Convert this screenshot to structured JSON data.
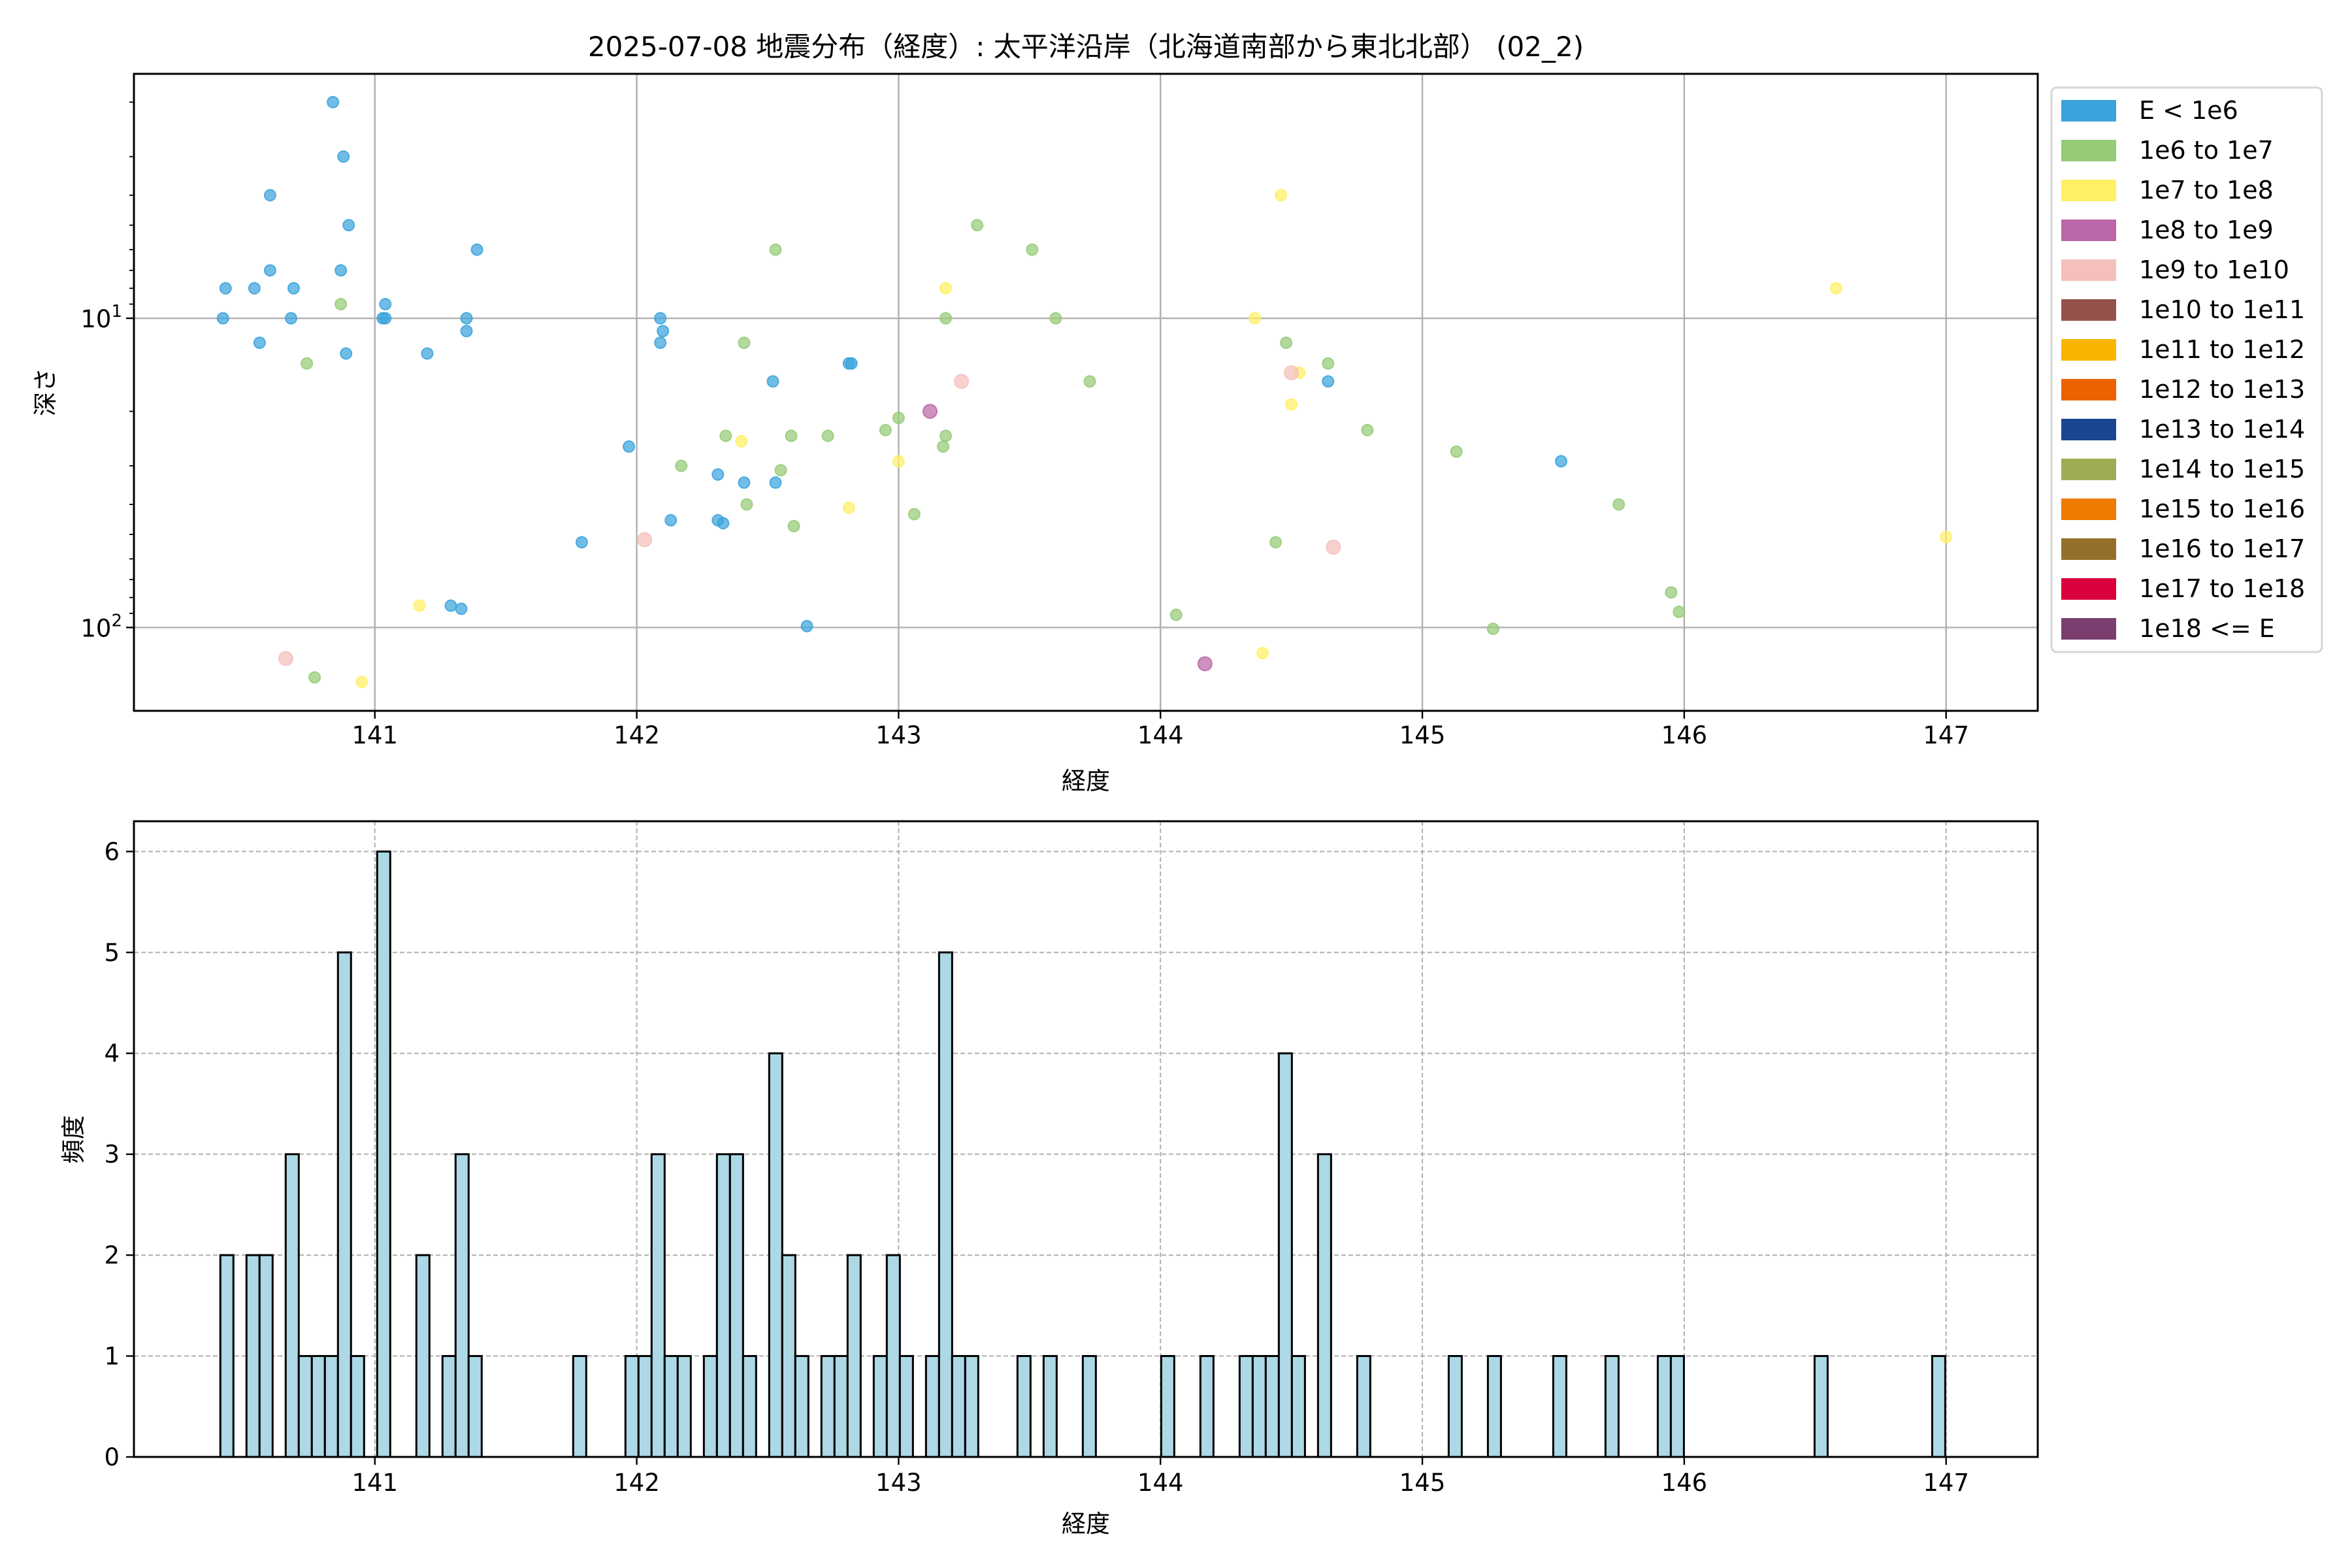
{
  "title": "2025-07-08 地震分布（経度）: 太平洋沿岸（北海道南部から東北北部） (02_2)",
  "chart_data": [
    {
      "type": "scatter",
      "xlabel": "経度",
      "ylabel": "深さ",
      "xlim": [
        140.08,
        147.35
      ],
      "ylim": [
        186,
        1.62
      ],
      "yscale": "log",
      "y_inverted": true,
      "grid": true,
      "xticks": [
        "141",
        "142",
        "143",
        "144",
        "145",
        "146",
        "147"
      ],
      "yticks": [
        {
          "value": 10,
          "base": "10",
          "exp": "1"
        },
        {
          "value": 100,
          "base": "10",
          "exp": "2"
        }
      ],
      "legend_position": "outside-right",
      "legend": [
        {
          "label": "E < 1e6",
          "color": "#3ba3dc"
        },
        {
          "label": "1e6 to 1e7",
          "color": "#95cb77"
        },
        {
          "label": "1e7 to 1e8",
          "color": "#fff064"
        },
        {
          "label": "1e8 to 1e9",
          "color": "#bb66a8"
        },
        {
          "label": "1e9 to 1e10",
          "color": "#f5bfbb"
        },
        {
          "label": "1e10 to 1e11",
          "color": "#95524d"
        },
        {
          "label": "1e11 to 1e12",
          "color": "#f7b500"
        },
        {
          "label": "1e12 to 1e13",
          "color": "#ec6200"
        },
        {
          "label": "1e13 to 1e14",
          "color": "#19468f"
        },
        {
          "label": "1e14 to 1e15",
          "color": "#9cad52"
        },
        {
          "label": "1e15 to 1e16",
          "color": "#ef7a00"
        },
        {
          "label": "1e16 to 1e17",
          "color": "#94702a"
        },
        {
          "label": "1e17 to 1e18",
          "color": "#d9003c"
        },
        {
          "label": "1e18 <= E",
          "color": "#7a3f6f"
        }
      ],
      "series": [
        {
          "legend_index": 0,
          "points": [
            [
              140.42,
              10
            ],
            [
              140.43,
              8
            ],
            [
              140.54,
              8
            ],
            [
              140.6,
              7
            ],
            [
              140.6,
              4
            ],
            [
              140.69,
              8
            ],
            [
              140.68,
              10
            ],
            [
              140.56,
              12
            ],
            [
              140.84,
              2
            ],
            [
              140.88,
              3
            ],
            [
              140.9,
              5
            ],
            [
              140.87,
              7
            ],
            [
              140.89,
              13
            ],
            [
              141.04,
              9
            ],
            [
              141.04,
              10
            ],
            [
              141.03,
              10
            ],
            [
              141.2,
              13
            ],
            [
              141.39,
              6
            ],
            [
              141.35,
              10
            ],
            [
              141.35,
              11
            ],
            [
              141.29,
              85
            ],
            [
              141.33,
              87
            ],
            [
              141.79,
              53
            ],
            [
              141.97,
              26
            ],
            [
              142.09,
              10
            ],
            [
              142.1,
              11
            ],
            [
              142.09,
              12
            ],
            [
              142.13,
              45
            ],
            [
              142.31,
              32
            ],
            [
              142.31,
              45
            ],
            [
              142.33,
              46
            ],
            [
              142.41,
              34
            ],
            [
              142.53,
              34
            ],
            [
              142.52,
              16
            ],
            [
              142.65,
              99
            ],
            [
              142.81,
              14
            ],
            [
              142.82,
              14
            ],
            [
              145.53,
              29
            ],
            [
              144.64,
              16
            ]
          ]
        },
        {
          "legend_index": 1,
          "points": [
            [
              140.87,
              9
            ],
            [
              140.74,
              14
            ],
            [
              140.77,
              145
            ],
            [
              142.53,
              6
            ],
            [
              142.41,
              12
            ],
            [
              142.34,
              24
            ],
            [
              142.17,
              30
            ],
            [
              142.59,
              24
            ],
            [
              142.73,
              24
            ],
            [
              142.55,
              31
            ],
            [
              142.42,
              40
            ],
            [
              142.6,
              47
            ],
            [
              142.95,
              23
            ],
            [
              143.0,
              21
            ],
            [
              143.18,
              24
            ],
            [
              143.17,
              26
            ],
            [
              143.06,
              43
            ],
            [
              143.18,
              10
            ],
            [
              143.3,
              5
            ],
            [
              143.51,
              6
            ],
            [
              143.6,
              10
            ],
            [
              143.73,
              16
            ],
            [
              144.48,
              12
            ],
            [
              144.64,
              14
            ],
            [
              144.79,
              23
            ],
            [
              145.13,
              27
            ],
            [
              145.75,
              40
            ],
            [
              145.95,
              77
            ],
            [
              145.98,
              89
            ],
            [
              145.27,
              101
            ],
            [
              144.06,
              91
            ],
            [
              144.44,
              53
            ]
          ]
        },
        {
          "legend_index": 2,
          "points": [
            [
              140.95,
              150
            ],
            [
              141.17,
              85
            ],
            [
              142.4,
              25
            ],
            [
              142.81,
              41
            ],
            [
              143.0,
              29
            ],
            [
              143.18,
              8
            ],
            [
              144.36,
              10
            ],
            [
              144.46,
              4
            ],
            [
              144.5,
              19
            ],
            [
              144.53,
              15
            ],
            [
              144.39,
              121
            ],
            [
              146.58,
              8
            ],
            [
              147.0,
              51
            ]
          ]
        },
        {
          "legend_index": 3,
          "points": [
            [
              143.12,
              20
            ],
            [
              144.17,
              131
            ]
          ]
        },
        {
          "legend_index": 4,
          "points": [
            [
              140.66,
              126
            ],
            [
              142.03,
              52
            ],
            [
              143.24,
              16
            ],
            [
              144.5,
              15
            ],
            [
              144.66,
              55
            ]
          ]
        }
      ]
    },
    {
      "type": "bar",
      "subtype": "histogram",
      "xlabel": "経度",
      "ylabel": "頻度",
      "xlim": [
        140.08,
        147.35
      ],
      "ylim": [
        0,
        6.3
      ],
      "grid": true,
      "grid_style": "dashed",
      "bar_color": "#add8e6",
      "edge_color": "#000000",
      "xticks": [
        "141",
        "142",
        "143",
        "144",
        "145",
        "146",
        "147"
      ],
      "yticks": [
        "0",
        "1",
        "2",
        "3",
        "4",
        "5",
        "6"
      ],
      "bin_start": 140.41,
      "bin_width": 0.0499,
      "counts": [
        2,
        0,
        2,
        2,
        0,
        3,
        1,
        1,
        1,
        5,
        1,
        0,
        6,
        0,
        0,
        2,
        0,
        1,
        3,
        1,
        0,
        0,
        0,
        0,
        0,
        0,
        0,
        1,
        0,
        0,
        0,
        1,
        1,
        3,
        1,
        1,
        0,
        1,
        3,
        3,
        1,
        0,
        4,
        2,
        1,
        0,
        1,
        1,
        2,
        0,
        1,
        2,
        1,
        0,
        1,
        5,
        1,
        1,
        0,
        0,
        0,
        1,
        0,
        1,
        0,
        0,
        1,
        0,
        0,
        0,
        0,
        0,
        1,
        0,
        0,
        1,
        0,
        0,
        1,
        1,
        1,
        4,
        1,
        0,
        3,
        0,
        0,
        1,
        0,
        0,
        0,
        0,
        0,
        0,
        1,
        0,
        0,
        1,
        0,
        0,
        0,
        0,
        1,
        0,
        0,
        0,
        1,
        0,
        0,
        0,
        1,
        1,
        0,
        0,
        0,
        0,
        0,
        0,
        0,
        0,
        0,
        0,
        1,
        0,
        0,
        0,
        0,
        0,
        0,
        0,
        0,
        1
      ]
    }
  ]
}
